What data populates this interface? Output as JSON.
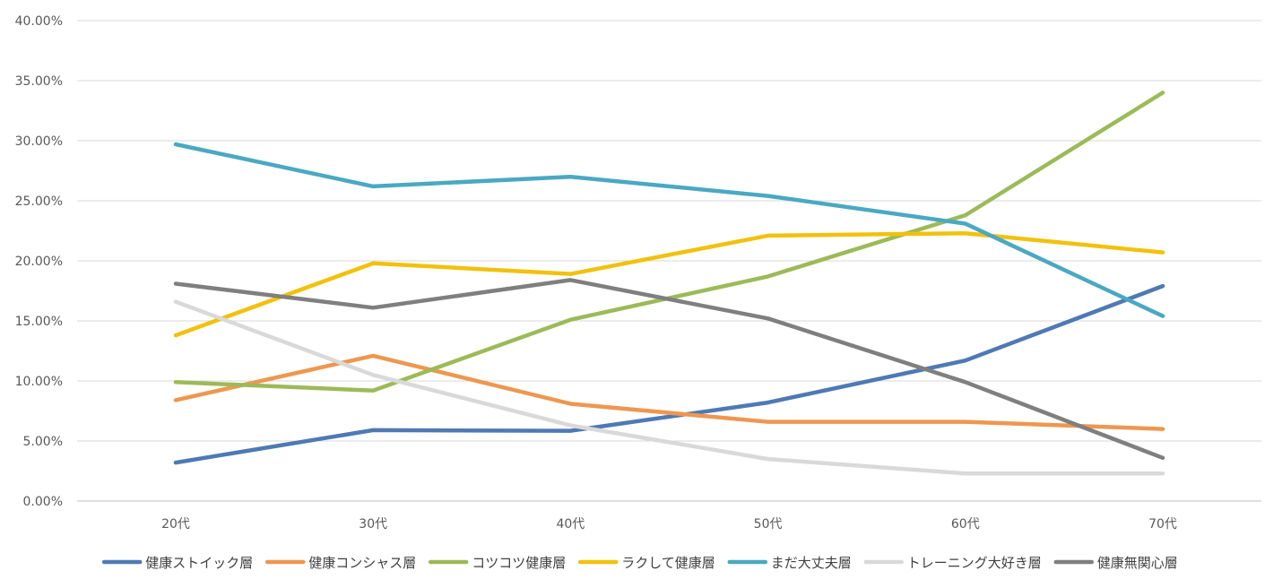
{
  "chart_data": {
    "type": "line",
    "title": "",
    "xlabel": "",
    "ylabel": "",
    "categories": [
      "20代",
      "30代",
      "40代",
      "50代",
      "60代",
      "70代"
    ],
    "ylim": [
      0,
      40
    ],
    "yticks": [
      0,
      5,
      10,
      15,
      20,
      25,
      30,
      35,
      40
    ],
    "ytick_labels": [
      "0.00%",
      "5.00%",
      "10.00%",
      "15.00%",
      "20.00%",
      "25.00%",
      "30.00%",
      "35.00%",
      "40.00%"
    ],
    "grid": true,
    "legend_position": "bottom",
    "series": [
      {
        "name": "健康ストイック層",
        "color": "#4e79b5",
        "values": [
          3.2,
          5.9,
          5.85,
          8.2,
          11.7,
          17.9
        ]
      },
      {
        "name": "健康コンシャス層",
        "color": "#ee9750",
        "values": [
          8.4,
          12.1,
          8.1,
          6.6,
          6.6,
          6.0
        ]
      },
      {
        "name": "コツコツ健康層",
        "color": "#9cbb58",
        "values": [
          9.9,
          9.2,
          15.1,
          18.7,
          23.8,
          34.0
        ]
      },
      {
        "name": "ラクして健康層",
        "color": "#f2c10d",
        "values": [
          13.8,
          19.8,
          18.9,
          22.1,
          22.3,
          20.7
        ]
      },
      {
        "name": "まだ大丈夫層",
        "color": "#4aa8c3",
        "values": [
          29.7,
          26.2,
          27.0,
          25.4,
          23.1,
          15.4
        ]
      },
      {
        "name": "トレーニング大好き層",
        "color": "#d9d9d9",
        "values": [
          16.6,
          10.5,
          6.3,
          3.5,
          2.3,
          2.3
        ]
      },
      {
        "name": "健康無関心層",
        "color": "#7f7f7f",
        "values": [
          18.1,
          16.1,
          18.4,
          15.2,
          9.9,
          3.6
        ]
      }
    ]
  }
}
